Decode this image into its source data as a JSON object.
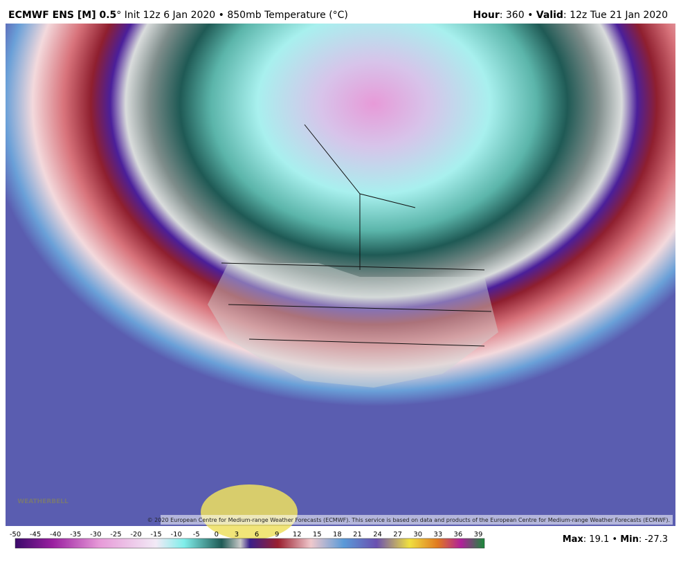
{
  "header": {
    "model": "ECMWF ENS [M] 0.5",
    "init": "° Init 12z 6 Jan 2020 • 850mb Temperature (°C)",
    "hour_label": "Hour",
    "hour": ": 360 • ",
    "valid_label": "Valid",
    "valid": ": 12z Tue 21 Jan 2020"
  },
  "map": {
    "copyright": "© 2020 European Centre for Medium-range Weather Forecasts (ECMWF). This service is based on data and products of the European Centre for Medium-range Weather Forecasts (ECMWF).",
    "watermark": "WEATHERBELL"
  },
  "colorbar": {
    "labels": [
      -50,
      -45,
      -40,
      -35,
      -30,
      -25,
      -20,
      -15,
      -10,
      -5,
      0,
      3,
      6,
      9,
      12,
      15,
      18,
      21,
      24,
      27,
      30,
      33,
      36,
      39
    ]
  },
  "stats": {
    "max_label": "Max",
    "max": ": 19.1 • ",
    "min_label": "Min",
    "min": ": -27.3"
  }
}
